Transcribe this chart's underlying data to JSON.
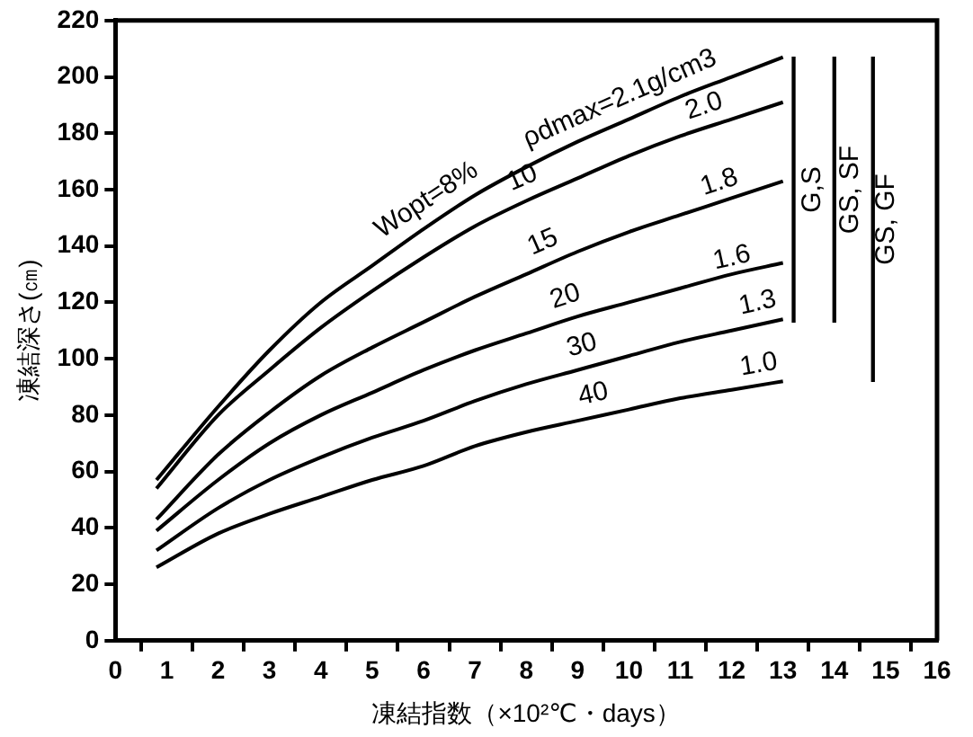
{
  "chart_data": {
    "type": "line",
    "xlabel": "凍結指数（×10²℃・days）",
    "ylabel": "凍結深さ(㎝)",
    "x": [
      0.8,
      2,
      3,
      4,
      5,
      6,
      7,
      8,
      9,
      10,
      11,
      12,
      13
    ],
    "xlim": [
      0,
      16
    ],
    "xticks": [
      0,
      1,
      2,
      3,
      4,
      5,
      6,
      7,
      8,
      9,
      10,
      11,
      12,
      13,
      14,
      15,
      16
    ],
    "ylim": [
      0,
      220
    ],
    "yticks": [
      0,
      20,
      40,
      60,
      80,
      100,
      120,
      140,
      160,
      180,
      200,
      220
    ],
    "legend": false,
    "marker": "none",
    "line_style": "solid",
    "series": [
      {
        "name": "Wopt=8%",
        "color": "#000000",
        "values": [
          57,
          83,
          103,
          120,
          133,
          146,
          158,
          168,
          177,
          185,
          193,
          200,
          207
        ]
      },
      {
        "name": "10",
        "color": "#000000",
        "values": [
          54,
          80,
          96,
          111,
          124,
          136,
          147,
          156,
          164,
          172,
          179,
          185,
          191
        ]
      },
      {
        "name": "15",
        "color": "#000000",
        "values": [
          43,
          66,
          81,
          94,
          104,
          113,
          122,
          130,
          138,
          145,
          151,
          157,
          163
        ]
      },
      {
        "name": "20",
        "color": "#000000",
        "values": [
          39,
          57,
          70,
          80,
          88,
          96,
          103,
          109,
          115,
          120,
          125,
          130,
          134
        ]
      },
      {
        "name": "30",
        "color": "#000000",
        "values": [
          32,
          47,
          57,
          65,
          72,
          78,
          85,
          91,
          96,
          101,
          106,
          110,
          114
        ]
      },
      {
        "name": "40",
        "color": "#000000",
        "values": [
          26,
          38,
          45,
          51,
          57,
          62,
          69,
          74,
          78,
          82,
          86,
          89,
          92
        ]
      },
      {
        "name": "G,S",
        "type": "bar",
        "color": "#000000",
        "x": [
          13.26
        ],
        "base": [
          113
        ],
        "values": [
          94
        ]
      },
      {
        "name": "GS, SF",
        "type": "bar",
        "color": "#000000",
        "x": [
          14
        ],
        "base": [
          113
        ],
        "values": [
          94
        ]
      },
      {
        "name": "GS, GF",
        "type": "bar",
        "color": "#000000",
        "x": [
          14.7
        ],
        "base": [
          92
        ],
        "values": [
          115
        ]
      }
    ],
    "annotations": [
      {
        "text": "ρdmax=2.1g/cm3",
        "x": 10,
        "y": 185
      },
      {
        "text": "2.0",
        "x": 11.6,
        "y": 182
      },
      {
        "text": "1.8",
        "x": 11.9,
        "y": 155
      },
      {
        "text": "1.6",
        "x": 12.1,
        "y": 128
      },
      {
        "text": "1.3",
        "x": 12.6,
        "y": 112
      },
      {
        "text": "1.0",
        "x": 12.6,
        "y": 90
      }
    ]
  }
}
